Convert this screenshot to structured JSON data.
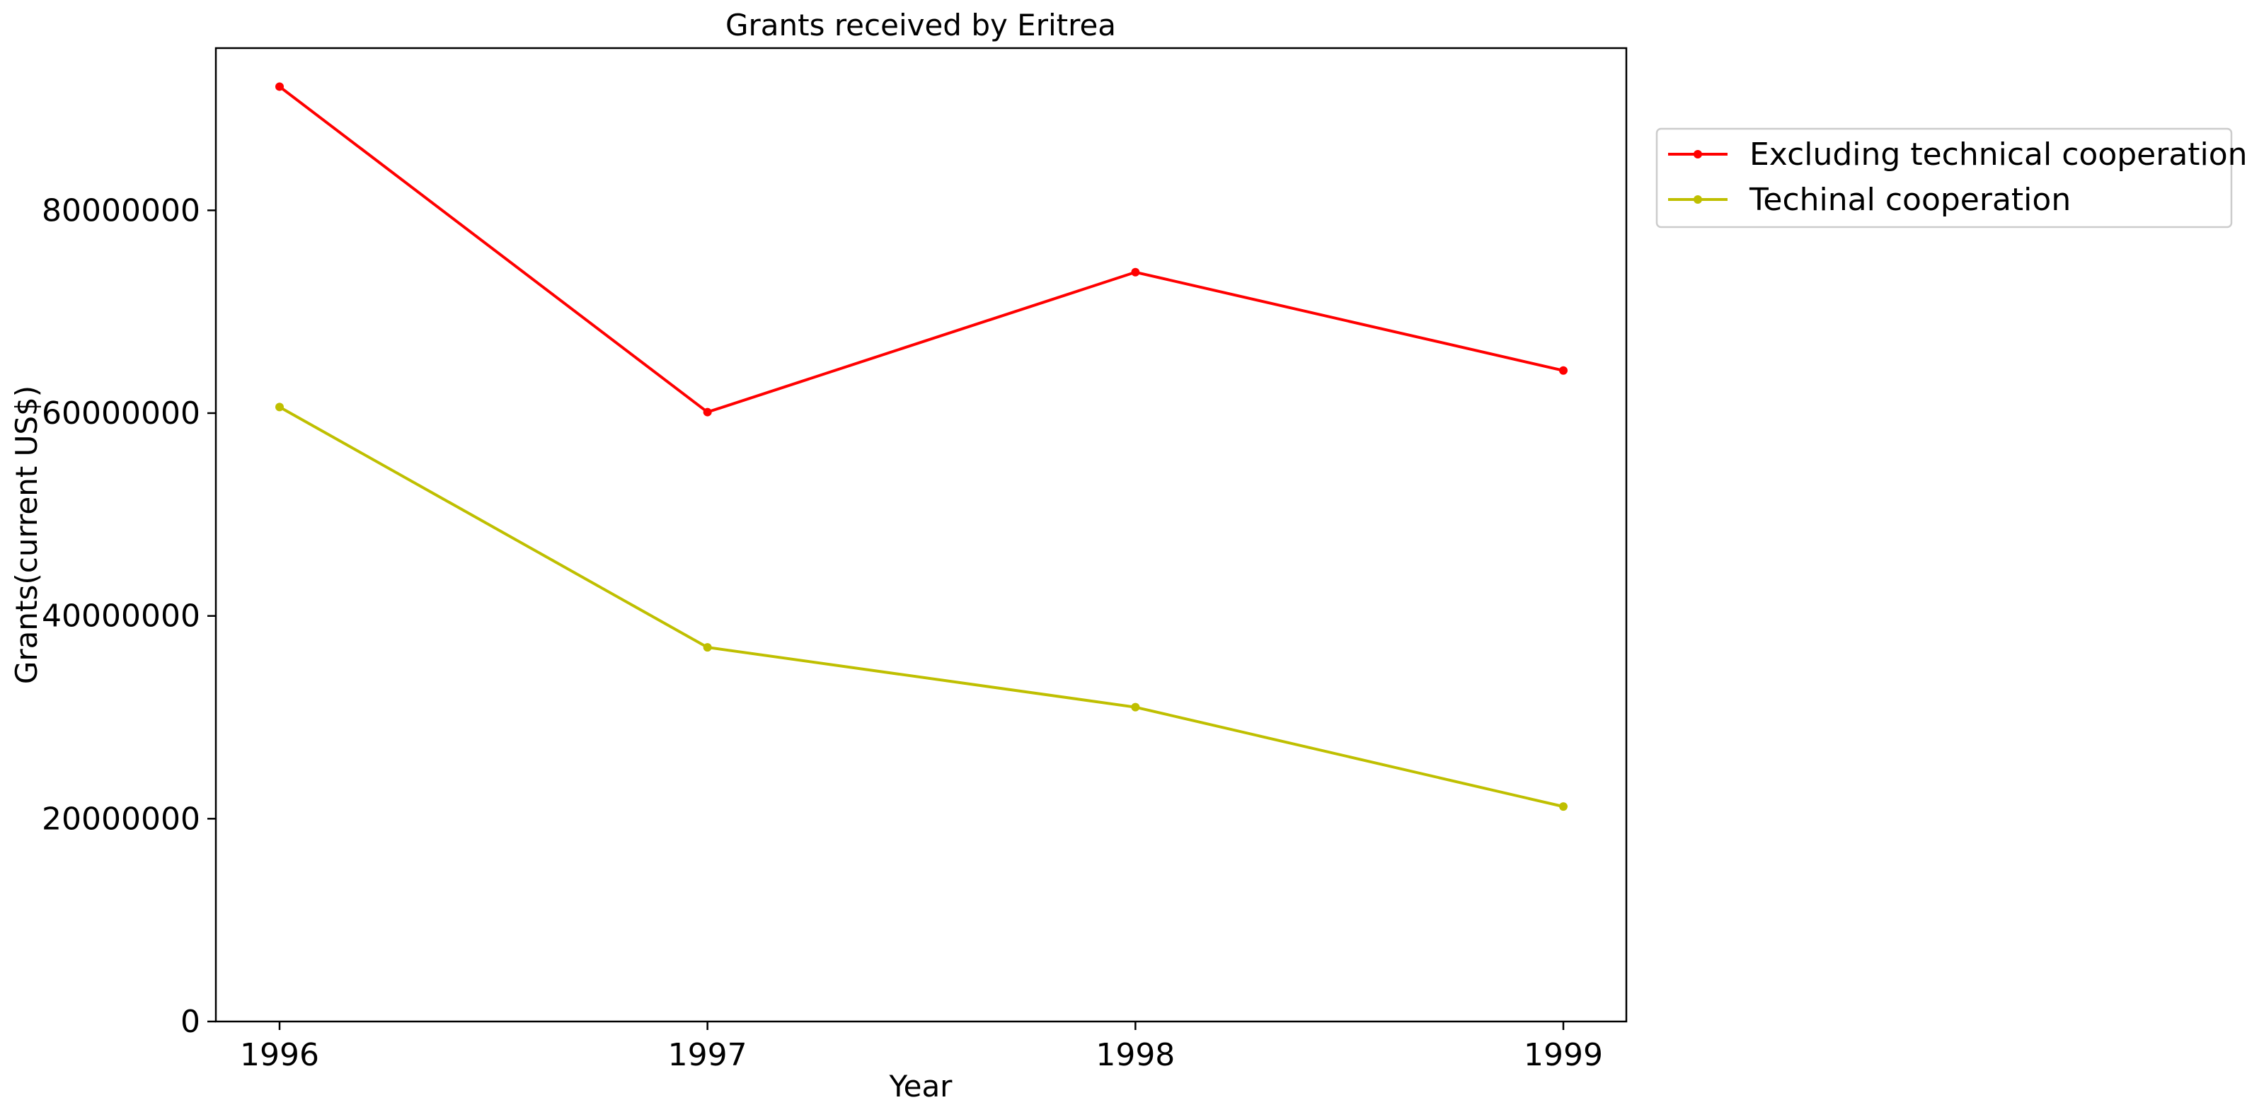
{
  "chart_data": {
    "type": "line",
    "title": "Grants received by Eritrea",
    "xlabel": "Year",
    "ylabel": "Grants(current US$)",
    "x": [
      1996,
      1997,
      1998,
      1999
    ],
    "ylim": [
      0,
      96000000
    ],
    "yticks": [
      0,
      20000000,
      40000000,
      60000000,
      80000000
    ],
    "grid": false,
    "legend_position": "outside-top-right",
    "series": [
      {
        "name": "Excluding technical cooperation",
        "color": "#ff0000",
        "marker": "circle",
        "values": [
          92200000,
          60100000,
          73900000,
          64200000
        ]
      },
      {
        "name": "Techinal cooperation",
        "color": "#bfbf00",
        "marker": "circle",
        "values": [
          60600000,
          36900000,
          31000000,
          21200000
        ]
      }
    ]
  }
}
